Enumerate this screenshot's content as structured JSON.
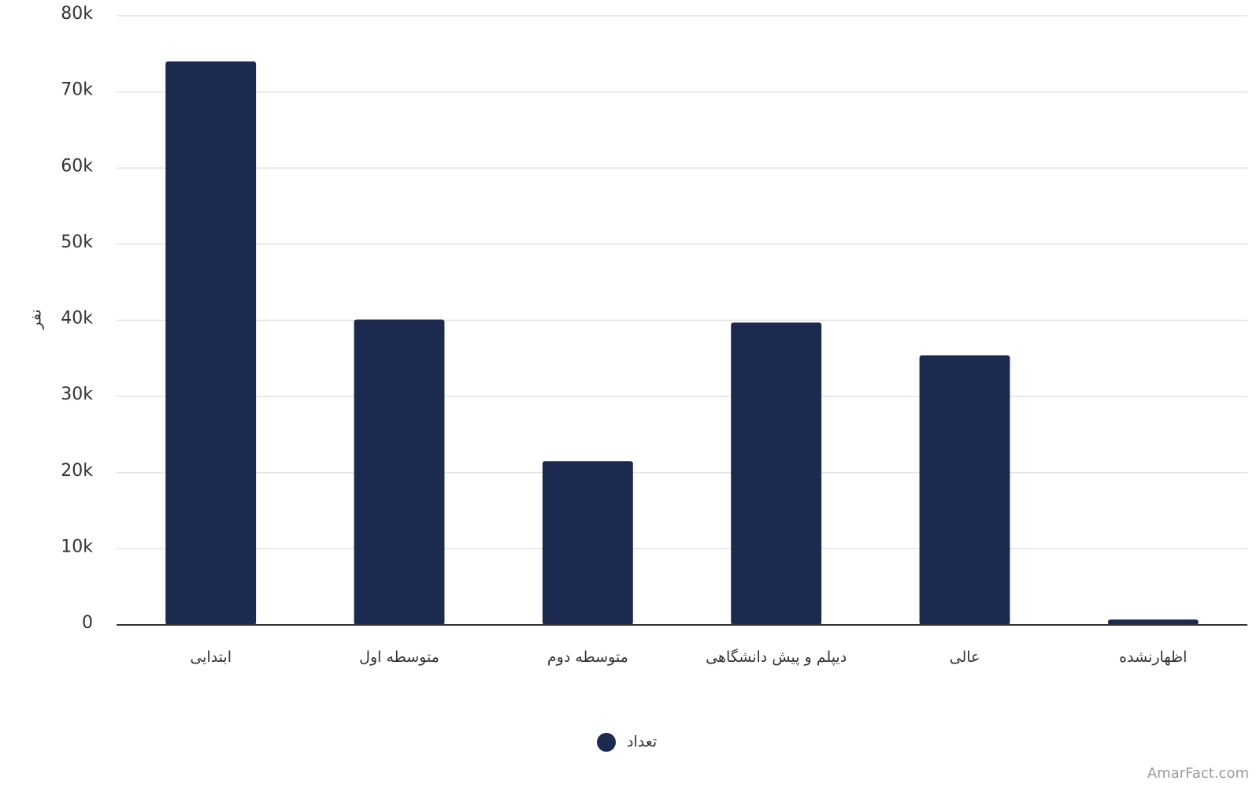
{
  "chart_data": {
    "type": "bar",
    "y_label": "نفر",
    "categories": [
      "ابتدایی",
      "متوسطه اول",
      "متوسطه دوم",
      "دیپلم و پیش دانشگاهی",
      "عالی",
      "اظهارنشده"
    ],
    "series": [
      {
        "name": "تعداد",
        "color": "#1b2a4e",
        "values": [
          74000,
          40100,
          21500,
          39700,
          35400,
          700
        ]
      }
    ],
    "ylim": [
      0,
      80000
    ],
    "yticks": [
      0,
      {
        "value": 10000,
        "label": "10k"
      },
      {
        "value": 20000,
        "label": "20k"
      },
      {
        "value": 30000,
        "label": "30k"
      },
      {
        "value": 40000,
        "label": "40k"
      },
      {
        "value": 50000,
        "label": "50k"
      },
      {
        "value": 60000,
        "label": "60k"
      },
      {
        "value": 70000,
        "label": "70k"
      },
      {
        "value": 80000,
        "label": "80k"
      }
    ],
    "grid": true,
    "legend": "bottom"
  },
  "watermark": "AmarFact.com"
}
